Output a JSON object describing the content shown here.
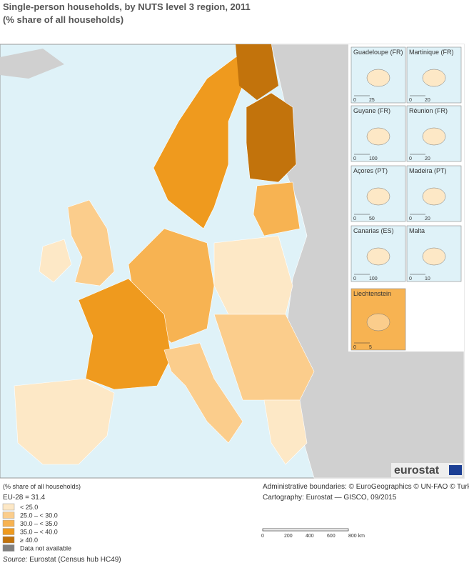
{
  "header": {
    "title": "Single-person households, by NUTS level 3 region, 2011",
    "subtitle": "(% share of all households)"
  },
  "insets": [
    {
      "label": "Guadeloupe (FR)",
      "scale": [
        "0",
        "25"
      ]
    },
    {
      "label": "Martinique (FR)",
      "scale": [
        "0",
        "20"
      ]
    },
    {
      "label": "Guyane (FR)",
      "scale": [
        "0",
        "100"
      ]
    },
    {
      "label": "Réunion (FR)",
      "scale": [
        "0",
        "20"
      ]
    },
    {
      "label": "Açores (PT)",
      "scale": [
        "0",
        "50"
      ]
    },
    {
      "label": "Madeira (PT)",
      "scale": [
        "0",
        "20"
      ]
    },
    {
      "label": "Canarias (ES)",
      "scale": [
        "0",
        "100"
      ]
    },
    {
      "label": "Malta",
      "scale": [
        "0",
        "10"
      ]
    },
    {
      "label": "Liechtenstein",
      "scale": [
        "0",
        "5"
      ]
    }
  ],
  "logo": "eurostat",
  "legend": {
    "title": "(% share of all households)",
    "note": "EU-28 = 31.4",
    "items": [
      {
        "label": "< 25.0",
        "color": "#fde8c6"
      },
      {
        "label": "25.0 – < 30.0",
        "color": "#fbcd8c"
      },
      {
        "label": "30.0 – < 35.0",
        "color": "#f7b352"
      },
      {
        "label": "35.0 – < 40.0",
        "color": "#ef9a1e"
      },
      {
        "label": "≥ 40.0",
        "color": "#c2730c"
      },
      {
        "label": "Data not available",
        "color": "#808080"
      }
    ]
  },
  "credits": [
    "Administrative boundaries: © EuroGeographics © UN-FAO © Turkstat",
    "Cartography: Eurostat — GISCO, 09/2015"
  ],
  "scale_bar": {
    "labels": [
      "0",
      "200",
      "400",
      "600",
      "800 km"
    ]
  },
  "source": {
    "prefix": "Source:",
    "text": " Eurostat (Census hub HC49)"
  }
}
